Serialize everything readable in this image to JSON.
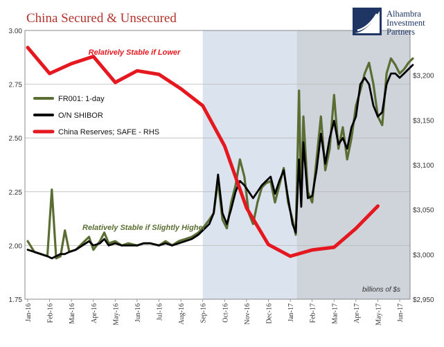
{
  "title": "China Secured & Unsecured",
  "brand": {
    "line1": "Alhambra",
    "line2": "Investment",
    "line3": "Partners"
  },
  "colors": {
    "fr001": "#5a6e33",
    "shibor": "#000000",
    "reserves": "#e5171f",
    "shade_light": "#dbe3ef",
    "shade_dark": "#cfd3da",
    "brand": "#1f3564",
    "title": "#b1342c"
  },
  "chart_data": {
    "type": "line",
    "months": [
      "Jan-16",
      "Feb-16",
      "Mar-16",
      "Apr-16",
      "May-16",
      "Jun-16",
      "Jul-16",
      "Aug-16",
      "Sep-16",
      "Oct-16",
      "Nov-16",
      "Dec-16",
      "Jan-17",
      "Feb-17",
      "Mar-17",
      "Apr-17",
      "May-17",
      "Jun-17"
    ],
    "ylim_left": [
      1.75,
      3.0
    ],
    "yticks_left": [
      "1.75",
      "2.00",
      "2.25",
      "2.50",
      "2.75",
      "3.00"
    ],
    "ylim_right": [
      2950,
      3250
    ],
    "yticks_right": [
      "$2,950",
      "$3,000",
      "$3,050",
      "$3,100",
      "$3,150",
      "$3,200"
    ],
    "grid": true,
    "legend_position": "upper-left",
    "shaded_regions": [
      {
        "from_month": 8.0,
        "to_month": 12.3,
        "shade": "light"
      },
      {
        "from_month": 12.3,
        "to_month": 17.6,
        "shade": "dark"
      }
    ],
    "series": [
      {
        "name": "FR001: 1-day",
        "axis": "left",
        "x": [
          0,
          0.3,
          0.6,
          0.9,
          1.1,
          1.3,
          1.5,
          1.7,
          1.9,
          2.2,
          2.5,
          2.8,
          3.0,
          3.3,
          3.5,
          3.7,
          4.0,
          4.3,
          4.6,
          5.0,
          5.3,
          5.6,
          6.0,
          6.3,
          6.6,
          6.9,
          7.2,
          7.5,
          7.8,
          8.0,
          8.3,
          8.5,
          8.7,
          8.9,
          9.1,
          9.3,
          9.5,
          9.7,
          9.9,
          10.1,
          10.3,
          10.5,
          10.7,
          10.9,
          11.1,
          11.3,
          11.5,
          11.7,
          11.9,
          12.1,
          12.25,
          12.4,
          12.5,
          12.6,
          12.8,
          13.0,
          13.2,
          13.4,
          13.6,
          13.8,
          14.0,
          14.2,
          14.4,
          14.6,
          14.8,
          15.0,
          15.2,
          15.4,
          15.6,
          15.8,
          16.0,
          16.2,
          16.4,
          16.6,
          16.8,
          17.0,
          17.2,
          17.4,
          17.6
        ],
        "values": [
          2.02,
          1.97,
          1.96,
          1.95,
          2.26,
          1.94,
          1.95,
          2.07,
          1.97,
          1.98,
          2.01,
          2.04,
          1.98,
          2.02,
          2.06,
          2.01,
          2.02,
          2.0,
          2.01,
          2.0,
          2.01,
          2.01,
          2.0,
          2.02,
          2.0,
          2.02,
          2.03,
          2.04,
          2.06,
          2.08,
          2.12,
          2.15,
          2.3,
          2.12,
          2.08,
          2.2,
          2.28,
          2.4,
          2.32,
          2.15,
          2.1,
          2.2,
          2.27,
          2.29,
          2.3,
          2.2,
          2.28,
          2.36,
          2.2,
          2.12,
          2.05,
          2.72,
          2.2,
          2.6,
          2.25,
          2.2,
          2.4,
          2.6,
          2.35,
          2.45,
          2.7,
          2.45,
          2.55,
          2.4,
          2.5,
          2.65,
          2.72,
          2.8,
          2.85,
          2.75,
          2.6,
          2.56,
          2.8,
          2.87,
          2.84,
          2.8,
          2.82,
          2.85,
          2.87
        ]
      },
      {
        "name": "O/N SHIBOR",
        "axis": "left",
        "x": [
          0,
          0.3,
          0.6,
          0.9,
          1.1,
          1.3,
          1.5,
          1.7,
          1.9,
          2.2,
          2.5,
          2.8,
          3.0,
          3.3,
          3.5,
          3.7,
          4.0,
          4.3,
          4.6,
          5.0,
          5.3,
          5.6,
          6.0,
          6.3,
          6.6,
          6.9,
          7.2,
          7.5,
          7.8,
          8.0,
          8.3,
          8.5,
          8.7,
          8.9,
          9.1,
          9.3,
          9.5,
          9.7,
          9.9,
          10.1,
          10.3,
          10.5,
          10.7,
          10.9,
          11.1,
          11.3,
          11.5,
          11.7,
          11.9,
          12.1,
          12.25,
          12.4,
          12.5,
          12.6,
          12.8,
          13.0,
          13.2,
          13.4,
          13.6,
          13.8,
          14.0,
          14.2,
          14.4,
          14.6,
          14.8,
          15.0,
          15.2,
          15.4,
          15.6,
          15.8,
          16.0,
          16.2,
          16.4,
          16.6,
          16.8,
          17.0,
          17.2,
          17.4,
          17.6
        ],
        "values": [
          1.98,
          1.97,
          1.96,
          1.95,
          1.94,
          1.95,
          1.96,
          1.96,
          1.97,
          1.98,
          2.0,
          2.02,
          2.0,
          2.01,
          2.03,
          2.0,
          2.01,
          2.0,
          2.0,
          2.0,
          2.01,
          2.01,
          2.0,
          2.01,
          2.0,
          2.01,
          2.02,
          2.03,
          2.05,
          2.07,
          2.1,
          2.15,
          2.33,
          2.15,
          2.1,
          2.17,
          2.25,
          2.3,
          2.28,
          2.25,
          2.22,
          2.25,
          2.28,
          2.3,
          2.32,
          2.24,
          2.3,
          2.35,
          2.22,
          2.1,
          2.06,
          2.4,
          2.18,
          2.48,
          2.22,
          2.23,
          2.35,
          2.52,
          2.38,
          2.5,
          2.58,
          2.47,
          2.5,
          2.45,
          2.55,
          2.6,
          2.75,
          2.78,
          2.75,
          2.65,
          2.6,
          2.62,
          2.75,
          2.8,
          2.8,
          2.78,
          2.8,
          2.82,
          2.84
        ]
      },
      {
        "name": "China Reserves; SAFE - RHS",
        "axis": "right",
        "x": [
          0,
          1,
          2,
          3,
          4,
          5,
          6,
          7,
          8,
          9,
          10,
          11,
          12,
          13,
          14,
          15,
          16
        ],
        "values": [
          3231,
          3202,
          3213,
          3221,
          3192,
          3205,
          3201,
          3185,
          3166,
          3121,
          3052,
          3011,
          2998,
          3005,
          3008,
          3029,
          3054
        ]
      }
    ],
    "annotations": {
      "stable_lower": "Relatively Stable if Lower",
      "stable_higher": "Relatively Stable if Slightly Higher",
      "units": "billions of $s"
    }
  }
}
